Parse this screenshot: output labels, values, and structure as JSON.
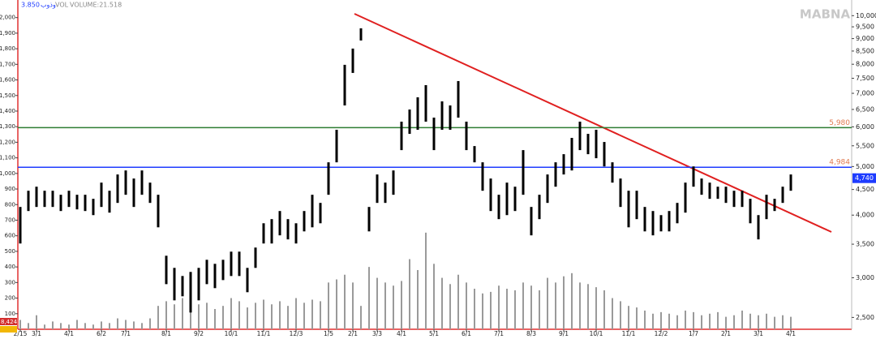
{
  "chart_data": {
    "type": "ohlc",
    "header": [
      "3.850",
      "وذوب",
      "VOL",
      "VOLUME:21.518"
    ],
    "watermark": "MABNA",
    "categories": [
      "2/15",
      null,
      "3/1",
      null,
      null,
      null,
      "4/1",
      null,
      null,
      null,
      "6/2",
      null,
      null,
      "7/1",
      null,
      null,
      null,
      null,
      "8/1",
      null,
      null,
      null,
      "9/2",
      null,
      null,
      null,
      "10/1",
      null,
      null,
      null,
      "11/1",
      null,
      null,
      null,
      "12/3",
      null,
      null,
      null,
      "1/5",
      null,
      null,
      "2/1",
      null,
      null,
      "3/3",
      null,
      null,
      "4/1",
      null,
      null,
      null,
      "5/1",
      null,
      null,
      null,
      "6/1",
      null,
      null,
      null,
      "7/1",
      null,
      null,
      null,
      "8/3",
      null,
      null,
      null,
      "9/1",
      null,
      null,
      null,
      "10/1",
      null,
      null,
      null,
      "11/1",
      null,
      null,
      null,
      "12/2",
      null,
      null,
      null,
      "1/7",
      null,
      null,
      null,
      "2/1",
      null,
      null,
      null,
      "3/1",
      null,
      null,
      null,
      "4/1"
    ],
    "price": {
      "color": "#000000",
      "high": [
        4153,
        4474,
        4558,
        4474,
        4474,
        4392,
        4474,
        4392,
        4392,
        4311,
        4644,
        4474,
        4821,
        4911,
        4732,
        4911,
        4644,
        4392,
        3319,
        3139,
        3024,
        3081,
        3139,
        3258,
        3198,
        3258,
        3382,
        3382,
        3139,
        3446,
        3853,
        3927,
        4076,
        3927,
        3853,
        4076,
        4392,
        4231,
        5098,
        5920,
        7979,
        8597,
        9436,
        4153,
        4821,
        4644,
        4911,
        6145,
        6497,
        6872,
        7268,
        6260,
        6745,
        6620,
        7405,
        6145,
        5493,
        5098,
        4732,
        4392,
        4644,
        4558,
        5392,
        4153,
        4392,
        4821,
        5098,
        5292,
        5703,
        6145,
        5810,
        5920,
        5597,
        5098,
        4732,
        4474,
        4474,
        4153,
        4076,
        4000,
        4076,
        4231,
        4644,
        5003,
        4732,
        4644,
        4558,
        4558,
        4474,
        4474,
        4311,
        4000,
        4392,
        4311,
        4558,
        4821
      ],
      "low": [
        3511,
        4076,
        4153,
        4153,
        4153,
        4076,
        4153,
        4107,
        4076,
        4000,
        4153,
        4046,
        4231,
        4392,
        4153,
        4392,
        4231,
        3782,
        2913,
        2704,
        2755,
        2557,
        2704,
        2913,
        2860,
        2968,
        3024,
        3024,
        2807,
        3139,
        3511,
        3511,
        3645,
        3578,
        3511,
        3712,
        3782,
        3853,
        4392,
        5098,
        6620,
        7687,
        8923,
        3712,
        4231,
        4231,
        4392,
        5392,
        5810,
        5920,
        6145,
        5392,
        5920,
        5920,
        6260,
        5392,
        5098,
        4474,
        4076,
        3927,
        4000,
        4076,
        4392,
        3645,
        3927,
        4231,
        4558,
        4821,
        4911,
        5392,
        5292,
        5195,
        5003,
        4644,
        4153,
        3782,
        3927,
        3712,
        3645,
        3712,
        3712,
        3853,
        4046,
        4558,
        4392,
        4311,
        4311,
        4231,
        4153,
        4153,
        3853,
        3578,
        3927,
        4076,
        4231,
        4474
      ]
    },
    "volume": {
      "axis": "y2",
      "color": "#9a9a9a",
      "values": [
        60,
        40,
        90,
        30,
        50,
        40,
        30,
        60,
        40,
        30,
        50,
        40,
        70,
        60,
        50,
        40,
        70,
        150,
        180,
        160,
        200,
        140,
        160,
        170,
        130,
        150,
        200,
        180,
        140,
        170,
        190,
        160,
        180,
        150,
        200,
        170,
        190,
        180,
        300,
        320,
        350,
        300,
        150,
        400,
        330,
        300,
        280,
        310,
        450,
        380,
        620,
        420,
        330,
        290,
        350,
        300,
        260,
        230,
        240,
        280,
        260,
        250,
        300,
        280,
        250,
        330,
        300,
        340,
        360,
        300,
        290,
        270,
        250,
        200,
        180,
        150,
        140,
        120,
        100,
        110,
        100,
        90,
        120,
        110,
        90,
        100,
        110,
        80,
        90,
        120,
        100,
        90,
        100,
        80,
        90,
        80
      ]
    },
    "log_scale": true,
    "ylim": [
      2350,
      10200
    ],
    "yticks": [
      {
        "value": 2500,
        "label": "2,500"
      },
      {
        "value": 3000,
        "label": "3,000"
      },
      {
        "value": 3500,
        "label": "3,500"
      },
      {
        "value": 4000,
        "label": "4,000"
      },
      {
        "value": 4500,
        "label": "4,500"
      },
      {
        "value": 5000,
        "label": "5,000"
      },
      {
        "value": 5500,
        "label": "5,500"
      },
      {
        "value": 6000,
        "label": "6,000"
      },
      {
        "value": 6500,
        "label": "6,500"
      },
      {
        "value": 7000,
        "label": "7,000"
      },
      {
        "value": 7500,
        "label": "7,500"
      },
      {
        "value": 8000,
        "label": "8,000"
      },
      {
        "value": 8500,
        "label": "8,500"
      },
      {
        "value": 9000,
        "label": "9,000"
      },
      {
        "value": 9500,
        "label": "9,500"
      },
      {
        "value": 10000,
        "label": "10,000"
      }
    ],
    "y2lim": [
      0,
      2040
    ],
    "y2ticks": [
      100,
      200,
      300,
      400,
      500,
      600,
      700,
      800,
      900,
      {
        "value": 1000,
        "label": "1,000"
      },
      {
        "value": 1100,
        "label": "1,100"
      },
      {
        "value": 1200,
        "label": "1,200"
      },
      {
        "value": 1300,
        "label": "1,300"
      },
      {
        "value": 1400,
        "label": "1,400"
      },
      {
        "value": 1500,
        "label": "1,500"
      },
      {
        "value": 1600,
        "label": "1,600"
      },
      {
        "value": 1700,
        "label": "1,700"
      },
      {
        "value": 1800,
        "label": "1,800"
      },
      {
        "value": 1900,
        "label": "1,900"
      },
      {
        "value": 2000,
        "label": "2,000"
      }
    ],
    "levels": [
      {
        "value": 5980,
        "label": "5,980",
        "color": "#2e7d32"
      },
      {
        "value": 4984,
        "label": "4,984",
        "color": "#1e3cff"
      }
    ],
    "last_price": {
      "value": 4740,
      "label": "4,740",
      "color": "#1e3cff"
    },
    "last_volume": {
      "label": "8,424",
      "color": "#d32f2f"
    }
  }
}
